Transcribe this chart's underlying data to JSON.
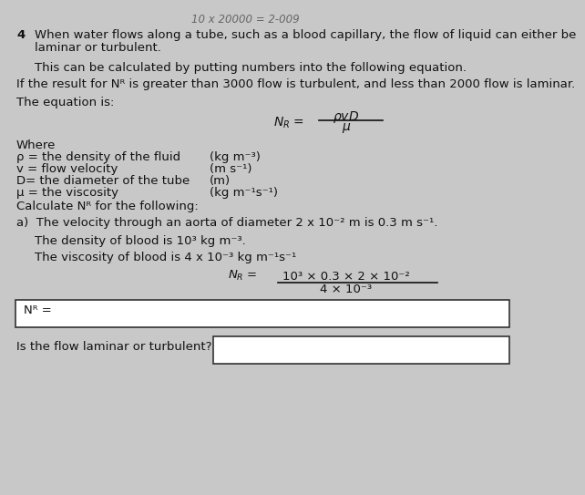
{
  "bg_color": "#c8c8c8",
  "text_color": "#111111",
  "top_scribble": "10 x 20000 = 2-009",
  "question_number": "4",
  "para1_line1": "When water flows along a tube, such as a blood capillary, the flow of liquid can either be",
  "para1_line2": "laminar or turbulent.",
  "para2": "This can be calculated by putting numbers into the following equation.",
  "para3": "If the result for Nᴿ is greater than 3000 flow is turbulent, and less than 2000 flow is laminar.",
  "para4": "The equation is:",
  "where_text": "Where",
  "var1": "ρ = the density of the fluid",
  "var1_unit": "(kg m⁻³)",
  "var2": "v = flow velocity",
  "var2_unit": "(m s⁻¹)",
  "var3": "D= the diameter of the tube",
  "var3_unit": "(m)",
  "var4": "μ = the viscosity",
  "var4_unit": "(kg m⁻¹s⁻¹)",
  "calc_header": "Calculate Nᴿ for the following:",
  "part_a": "a)  The velocity through an aorta of diameter 2 x 10⁻² m is 0.3 m s⁻¹.",
  "density_line": "The density of blood is 10³ kg m⁻³.",
  "viscosity_line": "The viscosity of blood is 4 x 10⁻³ kg m⁻¹s⁻¹",
  "calc_numerator": "10³ × 0.3 × 2 × 10⁻²",
  "calc_denominator": "4 × 10⁻³",
  "box1_label": "Nᴿ =",
  "box2_label": "Is the flow laminar or turbulent?"
}
